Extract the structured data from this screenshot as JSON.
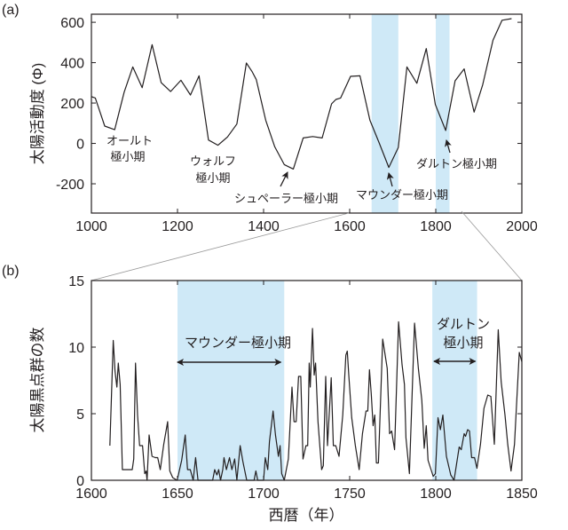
{
  "chart_data": [
    {
      "type": "line",
      "panel_label": "(a)",
      "ylabel": "太陽活動度 (Φ)",
      "xlabel": "",
      "xlim": [
        1000,
        2000
      ],
      "ylim": [
        -345,
        640
      ],
      "xticks": [
        1000,
        1200,
        1400,
        1600,
        1800,
        2000
      ],
      "yticks": [
        600,
        400,
        200,
        0,
        -200
      ],
      "grid": false,
      "line_color": "#231f20",
      "shade_color": "#cfe9f7",
      "shaded_periods": [
        [
          1651,
          1713
        ],
        [
          1800,
          1832
        ]
      ],
      "x": [
        1000,
        1009,
        1031,
        1054,
        1076,
        1096,
        1118,
        1141,
        1162,
        1184,
        1208,
        1230,
        1250,
        1272,
        1294,
        1316,
        1338,
        1360,
        1373,
        1383,
        1405,
        1426,
        1448,
        1469,
        1492,
        1514,
        1536,
        1558,
        1568,
        1579,
        1602,
        1624,
        1647,
        1668,
        1691,
        1713,
        1733,
        1756,
        1778,
        1799,
        1823,
        1845,
        1866,
        1889,
        1909,
        1933,
        1954,
        1976
      ],
      "y": [
        232,
        225,
        86,
        68,
        254,
        379,
        276,
        489,
        301,
        257,
        313,
        240,
        335,
        17,
        -9,
        32,
        96,
        398,
        357,
        316,
        115,
        -17,
        -105,
        -127,
        27,
        34,
        27,
        196,
        218,
        225,
        332,
        335,
        115,
        5,
        -119,
        -20,
        379,
        298,
        470,
        193,
        64,
        310,
        369,
        155,
        291,
        511,
        610,
        618
      ],
      "annotations": [
        {
          "lines": [
            "オールト",
            "極小期"
          ]
        },
        {
          "lines": [
            "ウォルフ",
            "極小期"
          ]
        },
        {
          "lines": [
            "シュペーラー極小期"
          ],
          "arrow_to": [
            1460,
            -120
          ]
        },
        {
          "lines": [
            "マウンダー極小期"
          ],
          "arrow_to": [
            1690,
            -115
          ]
        },
        {
          "lines": [
            "ダルトン極小期"
          ],
          "arrow_to": [
            1820,
            60
          ]
        }
      ]
    },
    {
      "type": "line",
      "panel_label": "(b)",
      "ylabel": "太陽黒点群の数",
      "xlabel": "西暦（年）",
      "xlim": [
        1600,
        1850
      ],
      "ylim": [
        0,
        15
      ],
      "xticks": [
        1600,
        1650,
        1700,
        1750,
        1800,
        1850
      ],
      "yticks": [
        15,
        10,
        5,
        0
      ],
      "grid": false,
      "line_color": "#231f20",
      "shade_color": "#cfe9f7",
      "shaded_periods": [
        [
          1650,
          1712
        ],
        [
          1798,
          1824
        ]
      ],
      "x": [
        1610.7,
        1612.7,
        1613.7,
        1614.8,
        1615.6,
        1616.7,
        1618,
        1623.7,
        1624.6,
        1625.6,
        1626.8,
        1628,
        1629.7,
        1631,
        1631.8,
        1632.3,
        1633.5,
        1635.2,
        1637.1,
        1638.5,
        1640,
        1642,
        1644.3,
        1645.5,
        1647.2,
        1649.8,
        1652.4,
        1654.5,
        1655.8,
        1657.4,
        1659.1,
        1660.5,
        1661.9,
        1670.4,
        1671.6,
        1672.9,
        1673.9,
        1675,
        1676.3,
        1677,
        1678.4,
        1680.2,
        1681.6,
        1683.2,
        1684.5,
        1686.4,
        1688,
        1690.2,
        1694.5,
        1695.5,
        1696.6,
        1700,
        1701,
        1702.4,
        1703.4,
        1705.5,
        1706.9,
        1708.6,
        1709.6,
        1710.5,
        1712,
        1714.4,
        1716.5,
        1717.7,
        1718.9,
        1720.3,
        1721.6,
        1722.9,
        1724.6,
        1725.6,
        1726.5,
        1727.1,
        1728.4,
        1729.4,
        1730.2,
        1731.6,
        1733.7,
        1734.7,
        1736.1,
        1737.1,
        1739.3,
        1740.5,
        1741.9,
        1743.8,
        1746,
        1747.8,
        1748.6,
        1749.5,
        1751.2,
        1753.3,
        1755.5,
        1757.4,
        1759.5,
        1760.5,
        1761.5,
        1762.5,
        1763.6,
        1764.6,
        1765.5,
        1766.7,
        1769.2,
        1771.8,
        1773.2,
        1774.4,
        1776.1,
        1778.4,
        1780.4,
        1781.8,
        1782.7,
        1784.7,
        1787.7,
        1789.9,
        1791.9,
        1793.3,
        1794.5,
        1795.5,
        1798.5,
        1799.8,
        1801.3,
        1802.7,
        1804.1,
        1806.2,
        1808.7,
        1810.6,
        1813.6,
        1814.8,
        1816.5,
        1817.3,
        1818.5,
        1819.6,
        1820.8,
        1822.5,
        1823.9,
        1826,
        1828,
        1830.2,
        1832,
        1834,
        1836.3,
        1838,
        1840.2,
        1841.8,
        1843.7,
        1845.7,
        1848.5,
        1850
      ],
      "y": [
        2.6,
        10.5,
        8.2,
        7.0,
        8.8,
        7.2,
        0.8,
        0.8,
        1.6,
        8.8,
        4.9,
        2.6,
        2.6,
        0.5,
        0.7,
        0,
        3.4,
        1.8,
        1.7,
        1.7,
        0.8,
        2.7,
        4.4,
        0.7,
        0.2,
        0,
        1.5,
        3.4,
        0.8,
        0.8,
        0,
        1.7,
        0,
        0,
        0.8,
        0.4,
        0.8,
        0,
        0.8,
        1.7,
        0.8,
        1.7,
        0.8,
        1.6,
        0,
        2.6,
        1.4,
        0,
        0,
        0.7,
        0,
        0,
        1.7,
        0.8,
        2.9,
        5.2,
        3.4,
        1.8,
        2.6,
        0.5,
        0,
        1.6,
        7.0,
        4.4,
        4.4,
        7.8,
        7.8,
        1.6,
        2.6,
        2.6,
        8.8,
        7.0,
        11.4,
        7.9,
        8.8,
        4.4,
        0.8,
        1.1,
        7.8,
        2.6,
        7.7,
        2.6,
        2.6,
        1.8,
        4.9,
        9.4,
        9.7,
        7.9,
        4.7,
        2.6,
        0.8,
        3.5,
        5.2,
        5.2,
        8.3,
        6.5,
        4.1,
        4.9,
        1.3,
        1.3,
        10.6,
        8.4,
        3.5,
        3.7,
        2.3,
        11.9,
        8.7,
        7.2,
        3.2,
        0.5,
        11.8,
        8.4,
        6.0,
        2.4,
        4.1,
        1.5,
        0.3,
        0.5,
        4.7,
        3.8,
        4.9,
        1.8,
        0.4,
        0,
        2.5,
        2.3,
        3.5,
        3.3,
        3.8,
        3.7,
        1.7,
        1.7,
        0.9,
        2.7,
        5.4,
        6.4,
        6.3,
        2.7,
        11.3,
        7.4,
        4.9,
        2.7,
        0.7,
        2.7,
        9.6,
        8.9
      ],
      "annotations": [
        {
          "lines": [
            "マウンダー極小期"
          ],
          "double_arrow": [
            1650,
            1710
          ]
        },
        {
          "lines": [
            "ダルトン",
            "極小期"
          ],
          "double_arrow": [
            1799,
            1823
          ]
        }
      ]
    }
  ]
}
